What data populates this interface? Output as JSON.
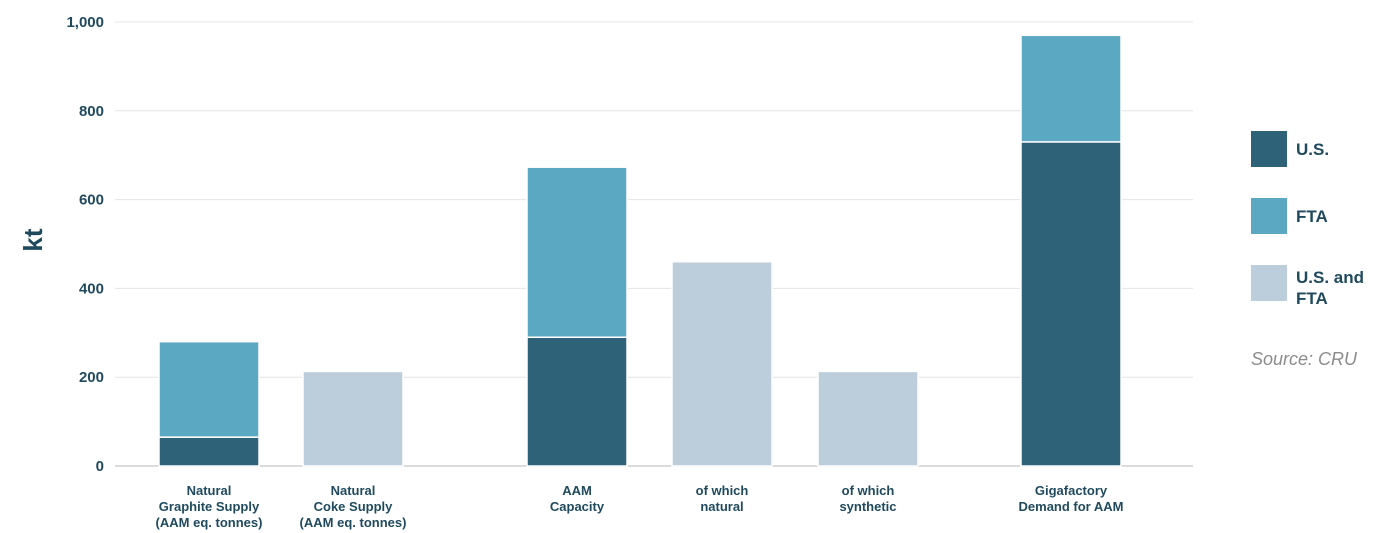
{
  "chart_data": {
    "type": "bar",
    "stacked": true,
    "ylabel": "kt",
    "ylim": [
      0,
      1000
    ],
    "yticks": [
      0,
      200,
      400,
      600,
      800,
      1000
    ],
    "ytick_labels": [
      "0",
      "200",
      "400",
      "600",
      "800",
      "1,000"
    ],
    "grid": true,
    "legend_position": "right",
    "source": "Source: CRU",
    "categories": [
      [
        "Natural",
        "Graphite Supply",
        "(AAM eq. tonnes)"
      ],
      [
        "Natural",
        "Coke Supply",
        "(AAM eq. tonnes)"
      ],
      [
        "AAM",
        "Capacity"
      ],
      [
        "of which",
        "natural"
      ],
      [
        "of which",
        "synthetic"
      ],
      [
        "Gigafactory",
        "Demand for AAM"
      ]
    ],
    "series": [
      {
        "name": "U.S.",
        "color": "#2e6279",
        "values": [
          65,
          0,
          290,
          0,
          0,
          730
        ]
      },
      {
        "name": "FTA",
        "color": "#5ba8c2",
        "values": [
          215,
          0,
          383,
          0,
          0,
          240
        ]
      },
      {
        "name": "U.S. and FTA",
        "name_lines": [
          "U.S. and",
          "FTA"
        ],
        "color": "#bccedb",
        "values": [
          0,
          213,
          0,
          460,
          213,
          0
        ]
      }
    ]
  }
}
